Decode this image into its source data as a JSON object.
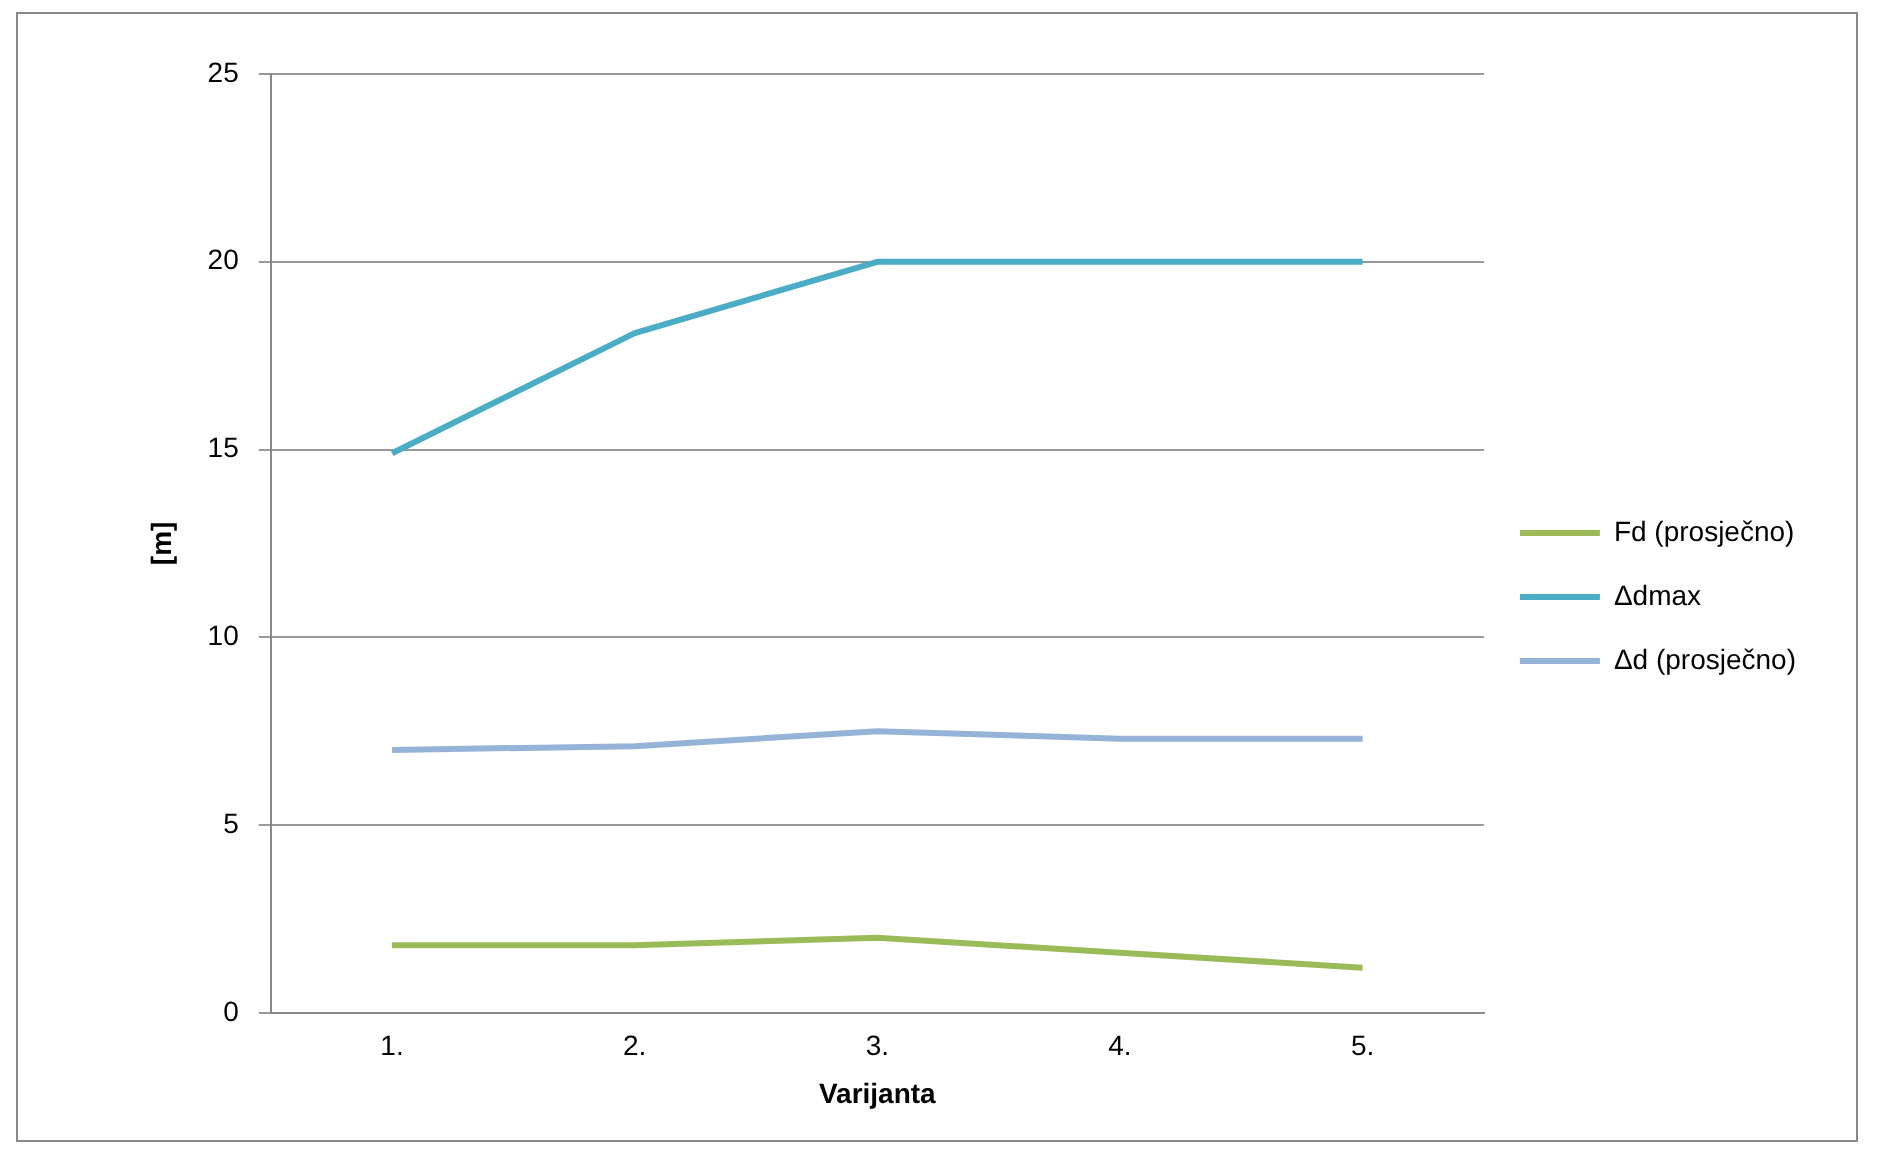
{
  "chart_data": {
    "type": "line",
    "xlabel": "Varijanta",
    "ylabel": "[m]",
    "categories": [
      "1.",
      "2.",
      "3.",
      "4.",
      "5."
    ],
    "series": [
      {
        "name": "Fd (prosječno)",
        "color": "#9bbb59",
        "values": [
          1.8,
          1.8,
          2.0,
          1.6,
          1.2
        ]
      },
      {
        "name": "Δdmax",
        "color": "#4bacc6",
        "values": [
          14.9,
          18.1,
          20,
          20,
          20
        ]
      },
      {
        "name": "Δd (prosječno)",
        "color": "#95b3d7",
        "values": [
          7.0,
          7.1,
          7.5,
          7.3,
          7.3
        ]
      }
    ],
    "ylim": [
      0,
      25
    ],
    "yticks": [
      0,
      5,
      10,
      15,
      20,
      25
    ],
    "grid": "y",
    "legend": "right",
    "marker": "none",
    "line_style": "solid"
  }
}
